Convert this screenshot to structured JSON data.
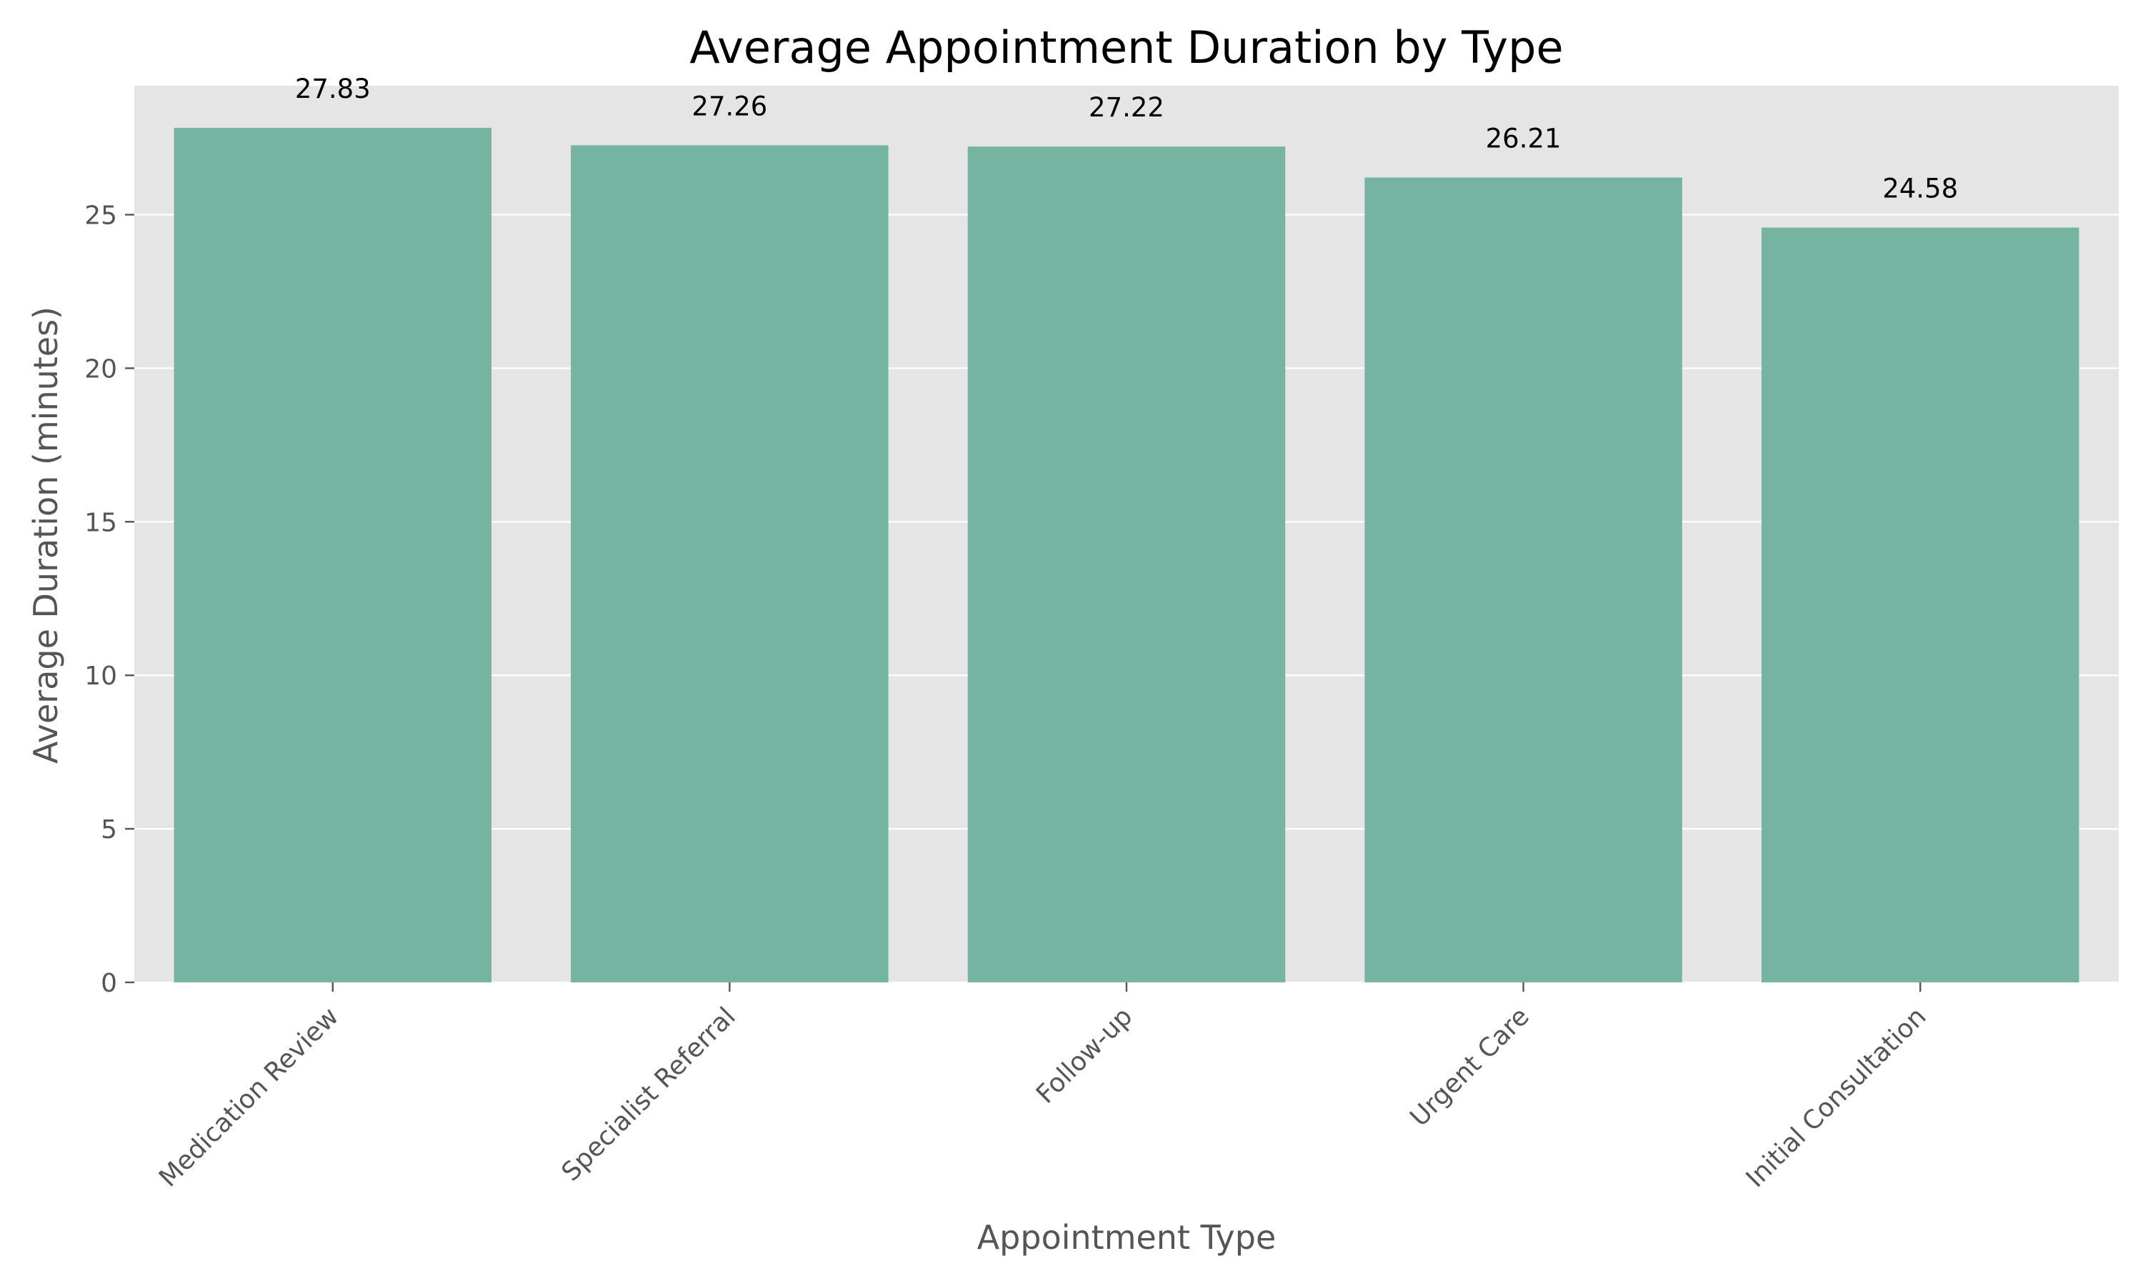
{
  "chart_data": {
    "type": "bar",
    "title": "Average Appointment Duration by Type",
    "xlabel": "Appointment Type",
    "ylabel": "Average Duration (minutes)",
    "categories": [
      "Medication Review",
      "Specialist Referral",
      "Follow-up",
      "Urgent Care",
      "Initial Consultation"
    ],
    "values": [
      27.83,
      27.26,
      27.22,
      26.21,
      24.58
    ],
    "value_labels": [
      "27.83",
      "27.26",
      "27.22",
      "26.21",
      "24.58"
    ],
    "ylim": [
      0,
      29.2
    ],
    "yticks": [
      0,
      5,
      10,
      15,
      20,
      25
    ],
    "ytick_labels": [
      "0",
      "5",
      "10",
      "15",
      "20",
      "25"
    ],
    "grid": true,
    "legend": "none",
    "colors": {
      "bar": "#74b4a0",
      "plot_background": "#e5e5e5",
      "grid": "#ffffff",
      "page_background": "#ffffff"
    }
  }
}
